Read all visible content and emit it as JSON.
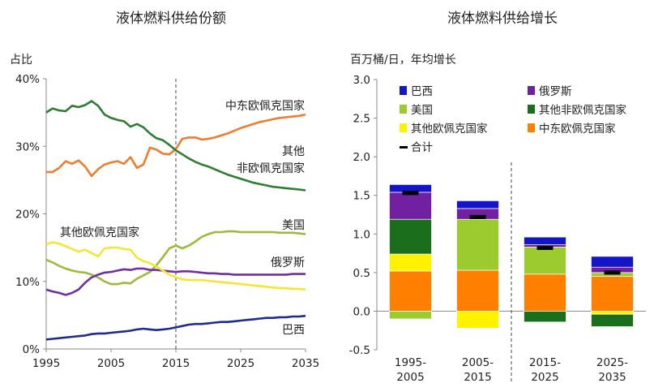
{
  "chart_data": [
    {
      "type": "line",
      "title": "液体燃料供给份额",
      "ylabel": "占比",
      "xlim": [
        1995,
        2035
      ],
      "ylim": [
        0,
        40
      ],
      "xticks": [
        "1995",
        "2005",
        "2015",
        "2025",
        "2035"
      ],
      "yticks": [
        "0%",
        "10%",
        "20%",
        "30%",
        "40%"
      ],
      "divider_x": 2015,
      "series": [
        {
          "key": "opec_me",
          "name": "中东欧佩克国家",
          "color": "#ED7D31",
          "x": [
            1995,
            1996,
            1997,
            1998,
            1999,
            2000,
            2001,
            2002,
            2003,
            2004,
            2005,
            2006,
            2007,
            2008,
            2009,
            2010,
            2011,
            2012,
            2013,
            2014,
            2015,
            2016,
            2017,
            2018,
            2019,
            2020,
            2021,
            2022,
            2023,
            2024,
            2025,
            2026,
            2027,
            2028,
            2029,
            2030,
            2031,
            2032,
            2033,
            2034,
            2035
          ],
          "values": [
            26.2,
            26.2,
            26.8,
            27.8,
            27.4,
            27.9,
            27.0,
            25.6,
            26.6,
            27.3,
            27.6,
            27.8,
            27.4,
            28.4,
            26.8,
            27.3,
            29.8,
            29.5,
            28.9,
            28.8,
            29.6,
            31.1,
            31.3,
            31.3,
            31.0,
            31.1,
            31.3,
            31.6,
            31.9,
            32.3,
            32.7,
            33.0,
            33.3,
            33.6,
            33.8,
            34.0,
            34.2,
            34.3,
            34.4,
            34.5,
            34.7
          ]
        },
        {
          "key": "other_nonopec",
          "name": "其他非欧佩克国家",
          "color": "#2E7D32",
          "x": [
            1995,
            1996,
            1997,
            1998,
            1999,
            2000,
            2001,
            2002,
            2003,
            2004,
            2005,
            2006,
            2007,
            2008,
            2009,
            2010,
            2011,
            2012,
            2013,
            2014,
            2015,
            2016,
            2017,
            2018,
            2019,
            2020,
            2021,
            2022,
            2023,
            2024,
            2025,
            2026,
            2027,
            2028,
            2029,
            2030,
            2031,
            2032,
            2033,
            2034,
            2035
          ],
          "values": [
            35.0,
            35.6,
            35.3,
            35.2,
            36.0,
            35.8,
            36.1,
            36.7,
            36.0,
            34.7,
            34.2,
            33.9,
            33.7,
            32.9,
            33.3,
            32.8,
            31.9,
            31.2,
            30.9,
            30.2,
            29.4,
            28.8,
            28.2,
            27.7,
            27.3,
            27.0,
            26.6,
            26.2,
            25.8,
            25.5,
            25.2,
            24.9,
            24.6,
            24.4,
            24.2,
            24.0,
            23.9,
            23.8,
            23.7,
            23.6,
            23.5
          ]
        },
        {
          "key": "us",
          "name": "美国",
          "color": "#9BBB3B",
          "x": [
            1995,
            1996,
            1997,
            1998,
            1999,
            2000,
            2001,
            2002,
            2003,
            2004,
            2005,
            2006,
            2007,
            2008,
            2009,
            2010,
            2011,
            2012,
            2013,
            2014,
            2015,
            2016,
            2017,
            2018,
            2019,
            2020,
            2021,
            2022,
            2023,
            2024,
            2025,
            2026,
            2027,
            2028,
            2029,
            2030,
            2031,
            2032,
            2033,
            2034,
            2035
          ],
          "values": [
            13.2,
            12.8,
            12.3,
            11.9,
            11.6,
            11.4,
            11.3,
            11.0,
            10.6,
            10.0,
            9.6,
            9.6,
            9.8,
            9.7,
            10.4,
            10.9,
            11.4,
            12.4,
            13.6,
            14.9,
            15.3,
            14.9,
            15.3,
            15.9,
            16.6,
            17.0,
            17.3,
            17.3,
            17.4,
            17.4,
            17.3,
            17.3,
            17.3,
            17.3,
            17.3,
            17.3,
            17.2,
            17.2,
            17.2,
            17.1,
            17.0
          ]
        },
        {
          "key": "russia",
          "name": "俄罗斯",
          "color": "#7030A0",
          "x": [
            1995,
            1996,
            1997,
            1998,
            1999,
            2000,
            2001,
            2002,
            2003,
            2004,
            2005,
            2006,
            2007,
            2008,
            2009,
            2010,
            2011,
            2012,
            2013,
            2014,
            2015,
            2016,
            2017,
            2018,
            2019,
            2020,
            2021,
            2022,
            2023,
            2024,
            2025,
            2026,
            2027,
            2028,
            2029,
            2030,
            2031,
            2032,
            2033,
            2034,
            2035
          ],
          "values": [
            8.8,
            8.5,
            8.3,
            8.0,
            8.3,
            8.8,
            9.8,
            10.6,
            11.0,
            11.3,
            11.4,
            11.6,
            11.8,
            11.7,
            11.9,
            11.9,
            11.7,
            11.7,
            11.6,
            11.5,
            11.4,
            11.5,
            11.5,
            11.4,
            11.3,
            11.2,
            11.2,
            11.1,
            11.1,
            11.0,
            11.0,
            11.0,
            11.0,
            11.0,
            11.0,
            11.0,
            11.0,
            11.0,
            11.1,
            11.1,
            11.1
          ]
        },
        {
          "key": "other_opec",
          "name": "其他欧佩克国家",
          "color": "#F4E638",
          "x": [
            1995,
            1996,
            1997,
            1998,
            1999,
            2000,
            2001,
            2002,
            2003,
            2004,
            2005,
            2006,
            2007,
            2008,
            2009,
            2010,
            2011,
            2012,
            2013,
            2014,
            2015,
            2016,
            2017,
            2018,
            2019,
            2020,
            2021,
            2022,
            2023,
            2024,
            2025,
            2026,
            2027,
            2028,
            2029,
            2030,
            2031,
            2032,
            2033,
            2034,
            2035
          ],
          "values": [
            15.5,
            15.8,
            15.6,
            15.2,
            14.8,
            14.4,
            14.7,
            14.2,
            13.7,
            14.9,
            15.0,
            15.0,
            14.8,
            14.7,
            13.5,
            13.0,
            12.7,
            12.2,
            11.6,
            11.0,
            10.6,
            10.3,
            10.2,
            10.2,
            10.2,
            10.1,
            10.0,
            9.9,
            9.8,
            9.7,
            9.6,
            9.5,
            9.4,
            9.3,
            9.2,
            9.1,
            9.0,
            9.0,
            8.9,
            8.9,
            8.8
          ]
        },
        {
          "key": "brazil",
          "name": "巴西",
          "color": "#1F2C8F",
          "x": [
            1995,
            1996,
            1997,
            1998,
            1999,
            2000,
            2001,
            2002,
            2003,
            2004,
            2005,
            2006,
            2007,
            2008,
            2009,
            2010,
            2011,
            2012,
            2013,
            2014,
            2015,
            2016,
            2017,
            2018,
            2019,
            2020,
            2021,
            2022,
            2023,
            2024,
            2025,
            2026,
            2027,
            2028,
            2029,
            2030,
            2031,
            2032,
            2033,
            2034,
            2035
          ],
          "values": [
            1.4,
            1.5,
            1.6,
            1.7,
            1.8,
            1.9,
            2.0,
            2.2,
            2.3,
            2.3,
            2.4,
            2.5,
            2.6,
            2.7,
            2.9,
            3.0,
            2.9,
            2.8,
            2.9,
            3.0,
            3.2,
            3.4,
            3.6,
            3.7,
            3.7,
            3.8,
            3.9,
            4.0,
            4.0,
            4.1,
            4.2,
            4.3,
            4.4,
            4.5,
            4.6,
            4.6,
            4.7,
            4.7,
            4.8,
            4.8,
            4.9
          ]
        }
      ],
      "annotations": [
        {
          "key": "opec_me",
          "lines": [
            "中东欧佩克国家"
          ]
        },
        {
          "key": "other_nonopec",
          "lines": [
            "其他",
            "非欧佩克国家"
          ]
        },
        {
          "key": "us",
          "lines": [
            "美国"
          ]
        },
        {
          "key": "other_opec",
          "lines": [
            "其他欧佩克国家"
          ]
        },
        {
          "key": "russia",
          "lines": [
            "俄罗斯"
          ]
        },
        {
          "key": "brazil",
          "lines": [
            "巴西"
          ]
        }
      ]
    },
    {
      "type": "bar",
      "stacked": true,
      "title": "液体燃料供给增长",
      "ylabel": "百万桶/日，年均增长",
      "ylim": [
        -0.5,
        3.0
      ],
      "yticks": [
        "-0.5",
        "0.0",
        "0.5",
        "1.0",
        "1.5",
        "2.0",
        "2.5",
        "3.0"
      ],
      "categories": [
        [
          "1995-",
          "2005"
        ],
        [
          "2005-",
          "2015"
        ],
        [
          "2015-",
          "2025"
        ],
        [
          "2025-",
          "2035"
        ]
      ],
      "divider_after_category": 1,
      "series": [
        {
          "name": "中东欧佩克国家",
          "color": "#FF7F00",
          "values": [
            0.52,
            0.53,
            0.48,
            0.45
          ]
        },
        {
          "name": "其他欧佩克国家",
          "color": "#FFF200",
          "values": [
            0.22,
            -0.22,
            0.0,
            -0.04
          ]
        },
        {
          "name": "美国",
          "color": "#9BCB2E",
          "values": [
            -0.1,
            0.66,
            0.35,
            0.05
          ]
        },
        {
          "name": "其他非欧佩克国家",
          "color": "#1B6E1B",
          "values": [
            0.45,
            0.0,
            -0.14,
            -0.16
          ]
        },
        {
          "name": "俄罗斯",
          "color": "#7020A0",
          "values": [
            0.35,
            0.14,
            0.03,
            0.07
          ]
        },
        {
          "name": "巴西",
          "color": "#1515C8",
          "values": [
            0.1,
            0.1,
            0.1,
            0.14
          ]
        }
      ],
      "totals": {
        "name": "合计",
        "color": "#000000",
        "values": [
          1.53,
          1.22,
          0.82,
          0.5
        ]
      },
      "legend_order": [
        "巴西",
        "俄罗斯",
        "美国",
        "其他非欧佩克国家",
        "其他欧佩克国家",
        "中东欧佩克国家",
        "合计"
      ]
    }
  ]
}
